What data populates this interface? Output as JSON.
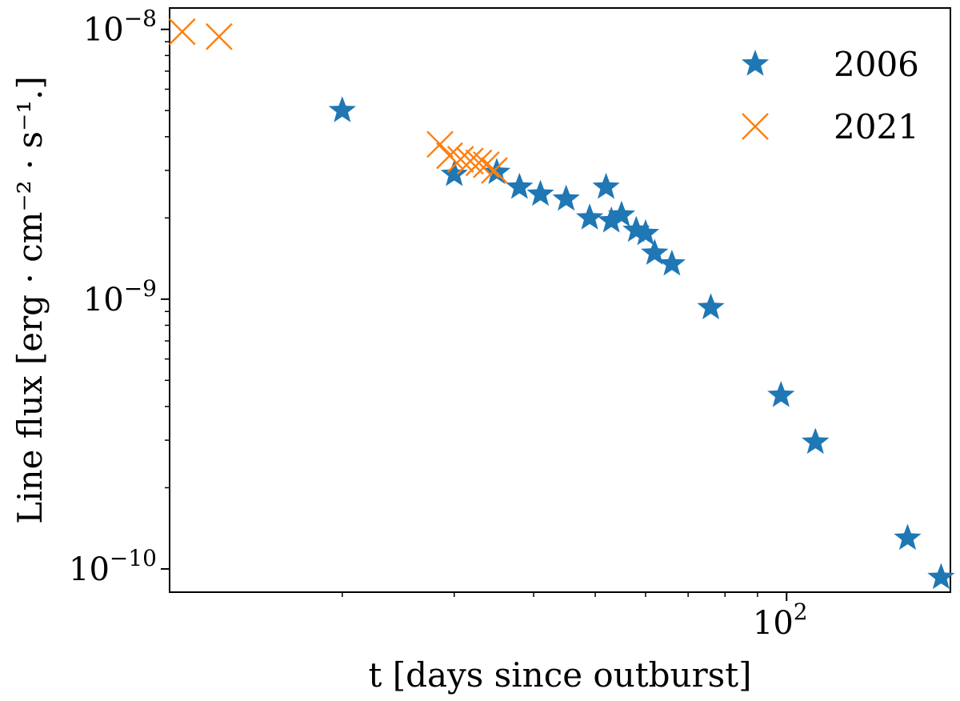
{
  "chart_data": {
    "type": "scatter",
    "title": "",
    "xlabel": "t [days since outburst]",
    "ylabel": "Line flux [erg · cm⁻² · s⁻¹.]",
    "xscale": "log",
    "yscale": "log",
    "xlim": [
      10.7,
      181
    ],
    "ylim": [
      8.2e-11,
      1.2e-08
    ],
    "grid": false,
    "legend_position": "top-right",
    "x_ticks": [
      {
        "value": 100,
        "base": "10",
        "exp": "2"
      }
    ],
    "y_ticks": [
      {
        "value": 1e-08,
        "base": "10",
        "exp": "−8"
      },
      {
        "value": 1e-09,
        "base": "10",
        "exp": "−9"
      },
      {
        "value": 1e-10,
        "base": "10",
        "exp": "−10"
      }
    ],
    "series": [
      {
        "name": "2006",
        "marker": "star",
        "color": "#1f77b4",
        "x": [
          20,
          30,
          35,
          38,
          41,
          45,
          49,
          52,
          53,
          55,
          58,
          60,
          62,
          66,
          76,
          98,
          111,
          155,
          175
        ],
        "y": [
          5e-09,
          2.9e-09,
          2.95e-09,
          2.6e-09,
          2.45e-09,
          2.35e-09,
          2e-09,
          2.6e-09,
          1.95e-09,
          2.05e-09,
          1.8e-09,
          1.75e-09,
          1.48e-09,
          1.35e-09,
          9.3e-10,
          4.4e-10,
          2.95e-10,
          1.3e-10,
          9.3e-11
        ]
      },
      {
        "name": "2021",
        "marker": "x",
        "color": "#ff7f0e",
        "x": [
          11.2,
          12.8,
          28.5,
          29.5,
          30.7,
          31.8,
          32.8,
          33.7,
          34.7
        ],
        "y": [
          9.8e-09,
          9.4e-09,
          3.75e-09,
          3.4e-09,
          3.3e-09,
          3.25e-09,
          3.2e-09,
          3.15e-09,
          3e-09
        ]
      }
    ]
  }
}
